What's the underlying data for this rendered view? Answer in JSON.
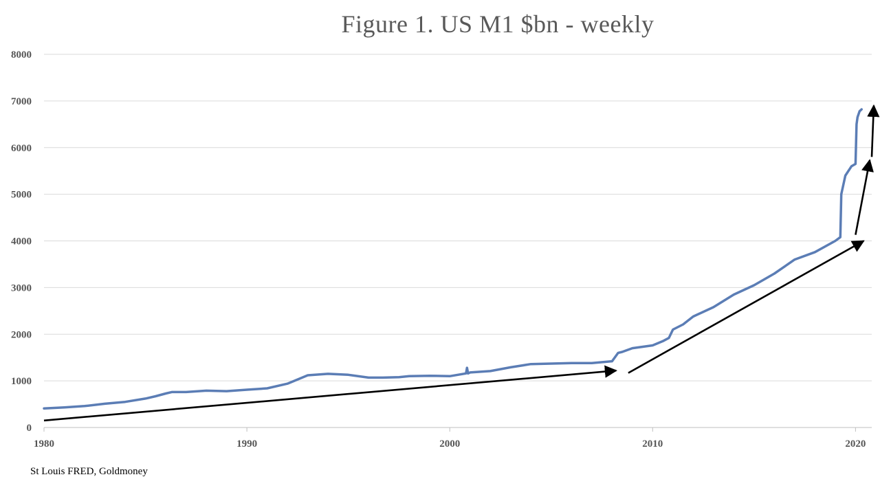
{
  "chart_data": {
    "type": "line",
    "title": "Figure 1. US M1 $bn - weekly",
    "xlabel": "",
    "ylabel": "",
    "xlim": [
      1980,
      2020.8
    ],
    "ylim": [
      0,
      8000
    ],
    "x_ticks": [
      1980,
      1990,
      2000,
      2010,
      2020
    ],
    "y_ticks": [
      0,
      1000,
      2000,
      3000,
      4000,
      5000,
      6000,
      7000,
      8000
    ],
    "grid": "horizontal",
    "legend": "none",
    "series_color": "#5b7db5",
    "annotation_color": "#000000",
    "series": [
      {
        "x": [
          1980.0,
          1981.0,
          1982.0,
          1983.0,
          1984.0,
          1985.0,
          1985.5,
          1986.0,
          1986.3,
          1987.0,
          1988.0,
          1989.0,
          1990.0,
          1991.0,
          1992.0,
          1993.0,
          1994.0,
          1995.0,
          1996.0,
          1996.7,
          1997.5,
          1998.0,
          1999.0,
          2000.0,
          2000.8,
          2000.85,
          2000.9,
          2001.0,
          2002.0,
          2003.0,
          2004.0,
          2005.0,
          2006.0,
          2007.0,
          2008.0,
          2008.3,
          2008.5,
          2009.0,
          2010.0,
          2010.5,
          2010.8,
          2011.0,
          2011.5,
          2012.0,
          2013.0,
          2014.0,
          2015.0,
          2016.0,
          2017.0,
          2018.0,
          2019.0,
          2019.25,
          2019.3,
          2019.5,
          2019.8,
          2020.0,
          2020.05,
          2020.1,
          2020.2,
          2020.3
        ],
        "y": [
          410,
          430,
          460,
          510,
          550,
          620,
          670,
          730,
          760,
          760,
          790,
          780,
          810,
          840,
          940,
          1120,
          1150,
          1130,
          1070,
          1070,
          1080,
          1100,
          1110,
          1100,
          1160,
          1280,
          1160,
          1180,
          1210,
          1290,
          1360,
          1370,
          1380,
          1380,
          1420,
          1600,
          1620,
          1700,
          1760,
          1850,
          1920,
          2100,
          2210,
          2380,
          2580,
          2850,
          3050,
          3300,
          3600,
          3760,
          4000,
          4080,
          5000,
          5400,
          5600,
          5650,
          6500,
          6650,
          6780,
          6820
        ]
      }
    ],
    "annotations": [
      {
        "type": "arrow",
        "x1": 1980.0,
        "y1": 150,
        "x2": 2008.2,
        "y2": 1220
      },
      {
        "type": "arrow",
        "x1": 2008.8,
        "y1": 1170,
        "x2": 2020.4,
        "y2": 4000
      },
      {
        "type": "arrow",
        "x1": 2020.0,
        "y1": 4130,
        "x2": 2020.7,
        "y2": 5730
      },
      {
        "type": "arrow",
        "x1": 2020.8,
        "y1": 5800,
        "x2": 2020.9,
        "y2": 6900
      }
    ],
    "source": "St Louis FRED, Goldmoney"
  }
}
